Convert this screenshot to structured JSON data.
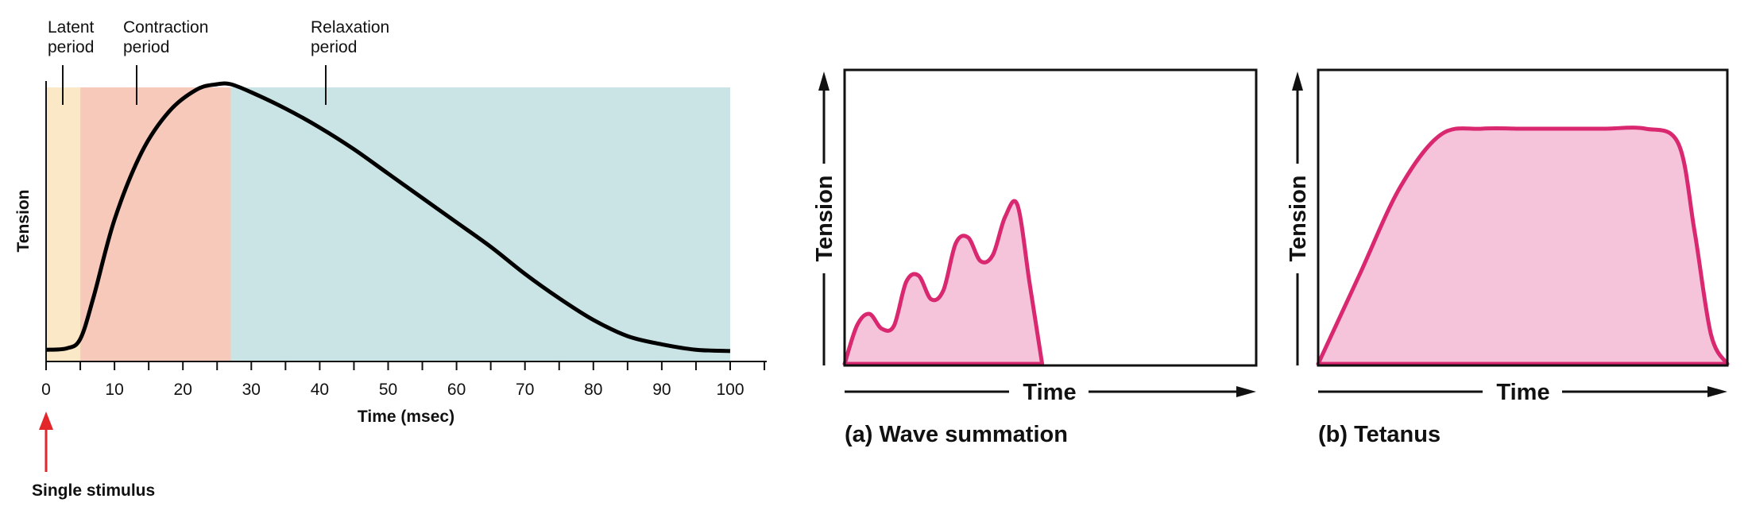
{
  "colors": {
    "latent": "#fbe8c7",
    "contraction": "#f6c9bb",
    "relaxation": "#cae3e5",
    "curve": "#000000",
    "pink_line": "#d9286f",
    "pink_fill": "#f5c4da",
    "stimulus_arrow": "#e2262a"
  },
  "chart_data": [
    {
      "type": "line",
      "title": "",
      "xlabel": "Time (msec)",
      "ylabel": "Tension",
      "xlim": [
        0,
        100
      ],
      "x_ticks": [
        "0",
        "10",
        "20",
        "30",
        "40",
        "50",
        "60",
        "70",
        "80",
        "90",
        "100"
      ],
      "periods": [
        {
          "label_line1": "Latent",
          "label_line2": "period",
          "start": 0,
          "end": 5
        },
        {
          "label_line1": "Contraction",
          "label_line2": "period",
          "start": 5,
          "end": 27
        },
        {
          "label_line1": "Relaxation",
          "label_line2": "period",
          "start": 27,
          "end": 100
        }
      ],
      "series": [
        {
          "x": [
            0,
            3,
            5,
            7,
            10,
            14,
            18,
            22,
            25,
            27,
            30,
            35,
            40,
            45,
            50,
            55,
            60,
            65,
            70,
            75,
            80,
            85,
            90,
            95,
            100
          ],
          "y": [
            0.02,
            0.025,
            0.06,
            0.22,
            0.5,
            0.75,
            0.9,
            0.98,
            1.0,
            1.0,
            0.97,
            0.91,
            0.84,
            0.76,
            0.67,
            0.58,
            0.49,
            0.4,
            0.3,
            0.21,
            0.13,
            0.07,
            0.04,
            0.02,
            0.015
          ]
        }
      ],
      "stimulus": {
        "x": 0,
        "label": "Single stimulus"
      }
    },
    {
      "type": "area",
      "caption": "(a) Wave summation",
      "xlabel": "Time",
      "ylabel": "Tension",
      "series": [
        {
          "x": [
            0,
            3,
            6,
            9,
            12,
            15,
            18,
            21,
            24,
            27,
            30,
            33,
            36,
            39,
            42,
            45,
            48,
            51,
            54,
            57,
            60,
            63,
            66,
            69,
            72,
            75,
            80,
            85,
            90,
            95,
            100
          ],
          "y": [
            0,
            0.13,
            0.17,
            0.12,
            0.13,
            0.28,
            0.3,
            0.22,
            0.25,
            0.41,
            0.43,
            0.35,
            0.37,
            0.5,
            0.54,
            0.27,
            0,
            0,
            0,
            0,
            0,
            0,
            0,
            0,
            0,
            0,
            0,
            0,
            0,
            0,
            0
          ]
        }
      ]
    },
    {
      "type": "area",
      "caption": "(b) Tetanus",
      "xlabel": "Time",
      "ylabel": "Tension",
      "series": [
        {
          "x": [
            0,
            10,
            20,
            30,
            40,
            50,
            60,
            70,
            80,
            88,
            92,
            96,
            100
          ],
          "y": [
            0,
            0.3,
            0.6,
            0.78,
            0.8,
            0.8,
            0.8,
            0.8,
            0.8,
            0.75,
            0.45,
            0.1,
            0
          ]
        }
      ]
    }
  ]
}
